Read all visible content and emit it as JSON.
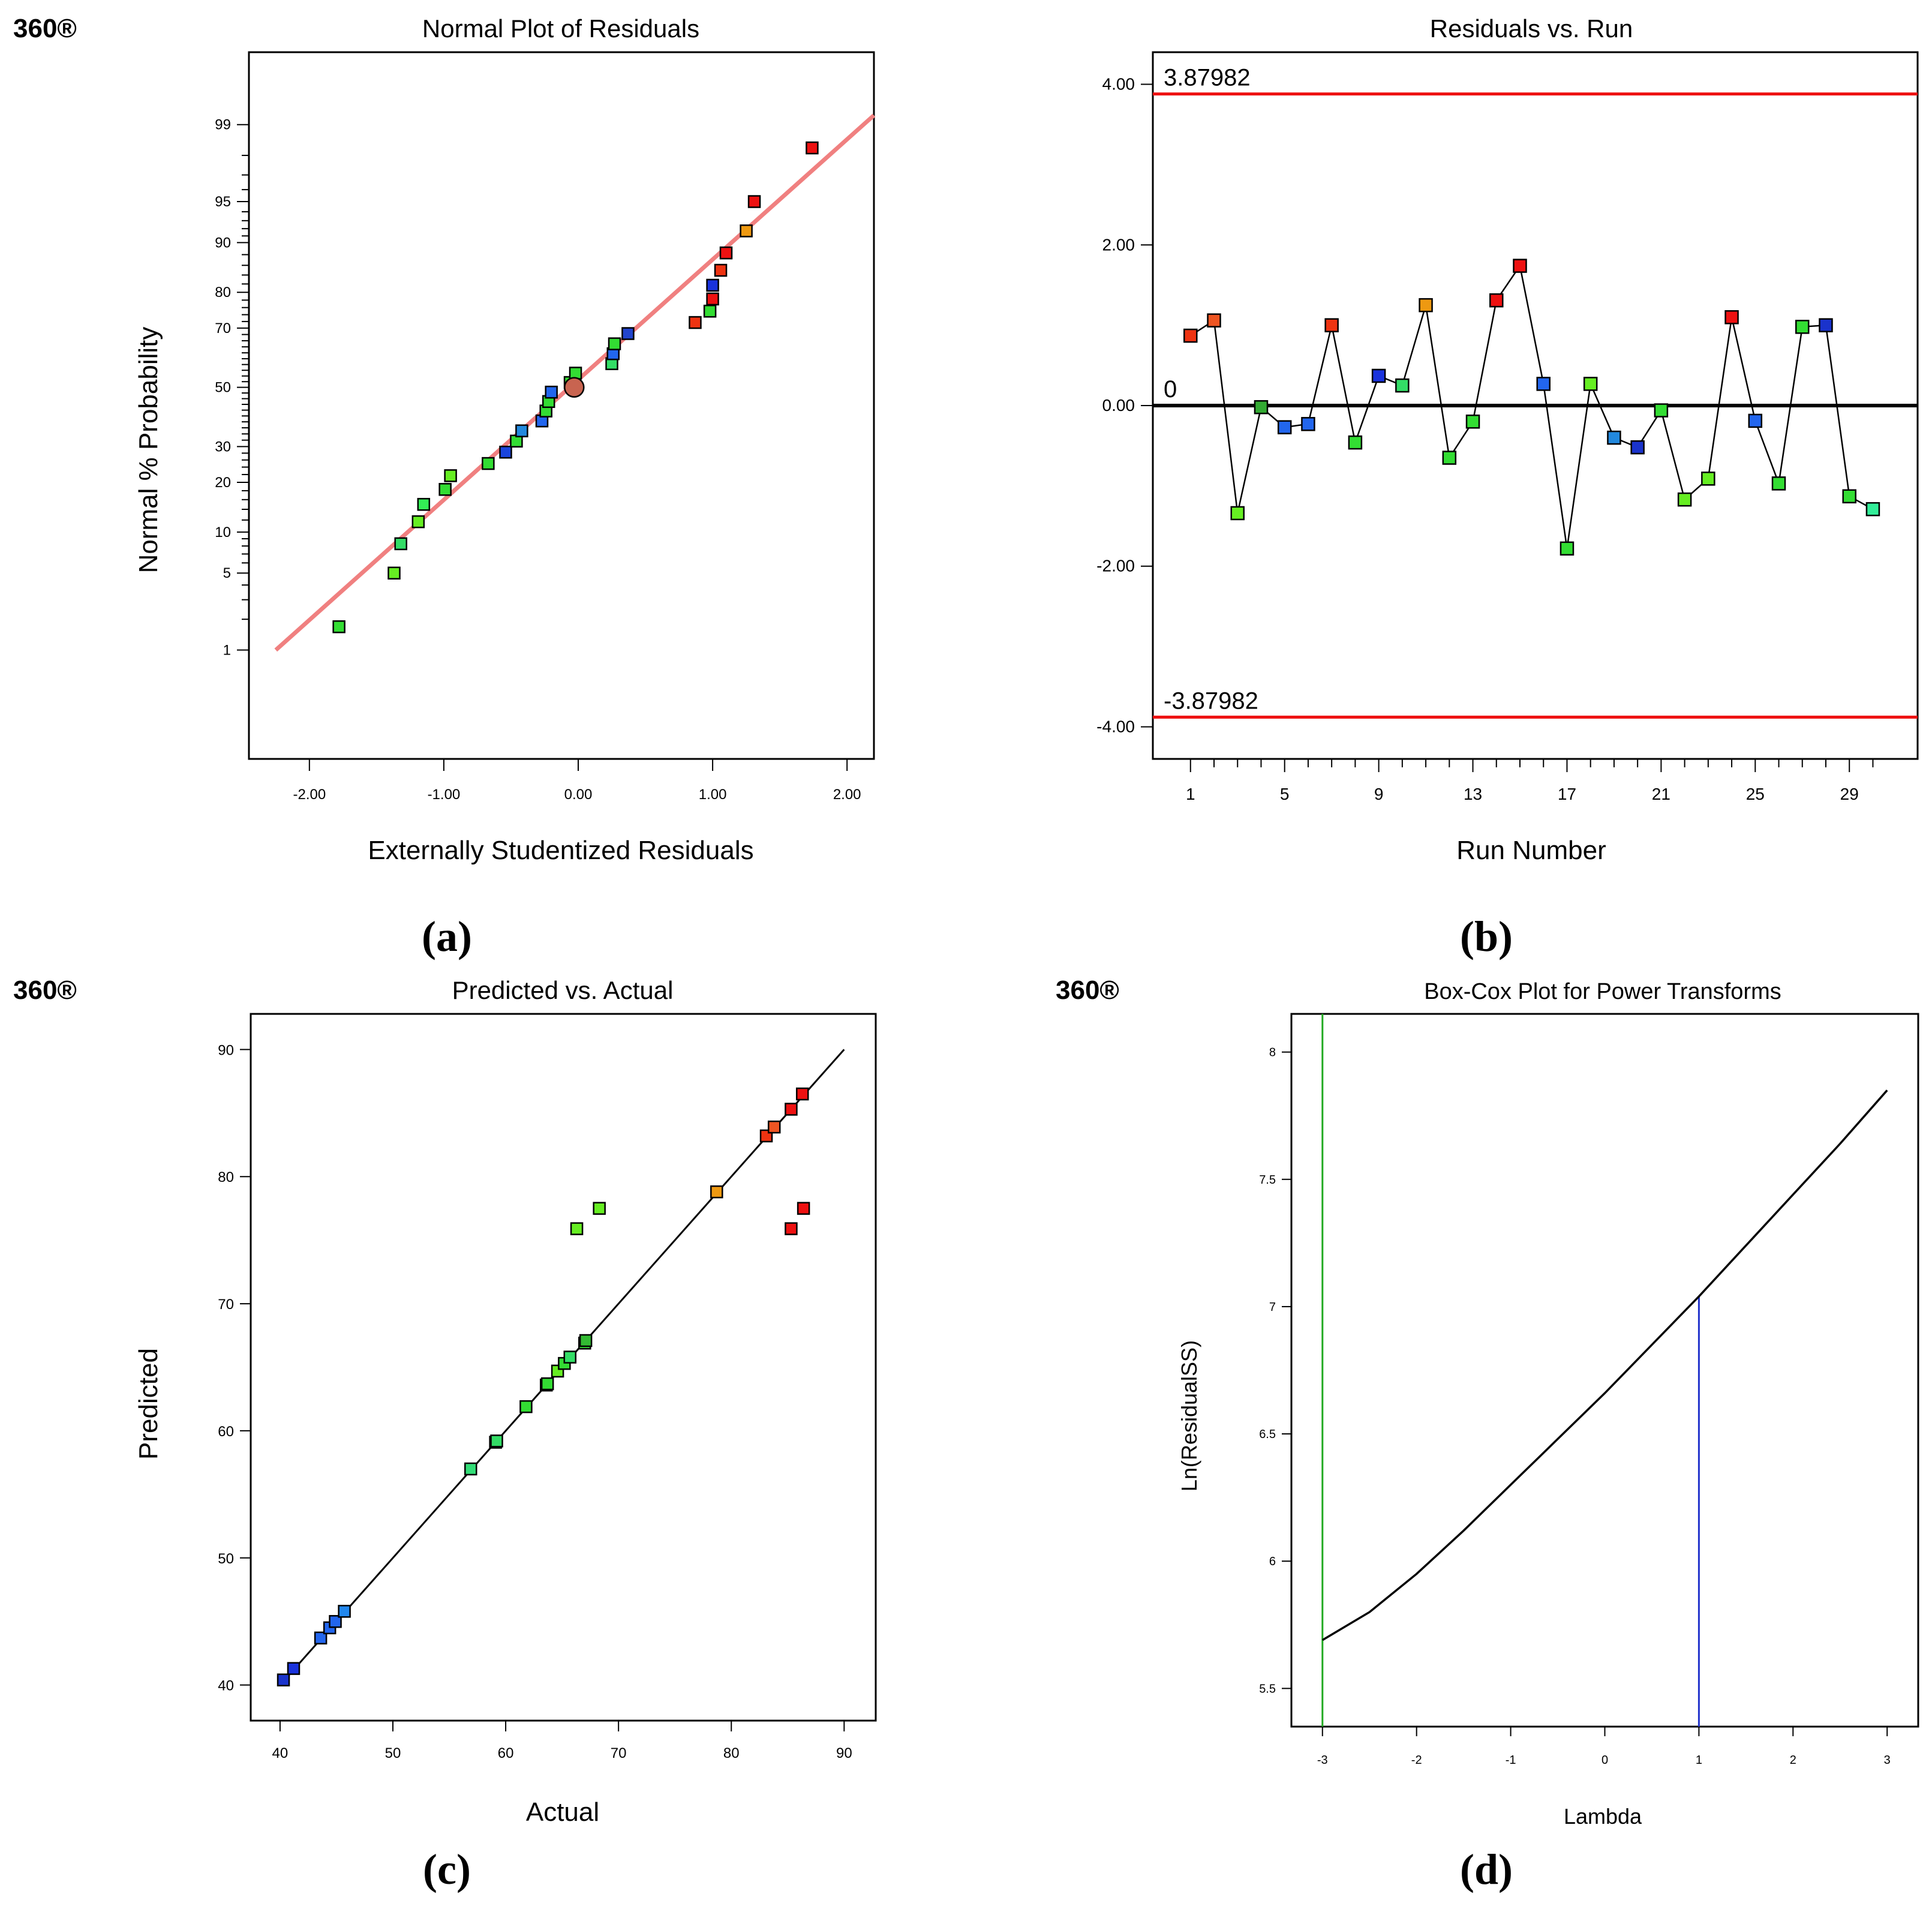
{
  "brand": "360®",
  "chart_data": [
    {
      "type": "scatter",
      "panel_label": "(a)",
      "title": "Normal Plot of Residuals",
      "xlabel": "Externally Studentized Residuals",
      "ylabel": "Normal % Probability",
      "xlim": [
        -2.45,
        2.2
      ],
      "x_ticks": [
        "-2.00",
        "-1.00",
        "0.00",
        "1.00",
        "2.00"
      ],
      "x_tick_values": [
        -2,
        -1,
        0,
        1,
        2
      ],
      "y_scale": "normal-probability",
      "y_ticks": [
        "1",
        "5",
        "10",
        "20",
        "30",
        "50",
        "70",
        "80",
        "90",
        "95",
        "99"
      ],
      "y_tick_values": [
        1,
        5,
        10,
        20,
        30,
        50,
        70,
        80,
        90,
        95,
        99
      ],
      "reference_line": {
        "x": [
          -2.25,
          2.2
        ],
        "y": [
          1,
          99.2
        ],
        "color": "#f08080"
      },
      "points": [
        {
          "x": -1.78,
          "y": 1.7,
          "color": "#33dd33"
        },
        {
          "x": -1.37,
          "y": 5.0,
          "color": "#66ee22"
        },
        {
          "x": -1.32,
          "y": 8.3,
          "color": "#33dd66"
        },
        {
          "x": -1.19,
          "y": 11.7,
          "color": "#66ee22"
        },
        {
          "x": -1.15,
          "y": 15.0,
          "color": "#33ee55"
        },
        {
          "x": -0.99,
          "y": 18.3,
          "color": "#33dd33"
        },
        {
          "x": -0.95,
          "y": 21.7,
          "color": "#66ee22"
        },
        {
          "x": -0.67,
          "y": 25.0,
          "color": "#33dd33"
        },
        {
          "x": -0.54,
          "y": 28.3,
          "color": "#1a44dd"
        },
        {
          "x": -0.46,
          "y": 31.7,
          "color": "#33dd33"
        },
        {
          "x": -0.42,
          "y": 35.0,
          "color": "#2288dd"
        },
        {
          "x": -0.27,
          "y": 38.3,
          "color": "#2266ee"
        },
        {
          "x": -0.24,
          "y": 41.7,
          "color": "#33dd33"
        },
        {
          "x": -0.22,
          "y": 45.0,
          "color": "#33dd33"
        },
        {
          "x": -0.2,
          "y": 48.3,
          "color": "#2266ee"
        },
        {
          "x": -0.06,
          "y": 51.7,
          "color": "#33dd33"
        },
        {
          "x": -0.02,
          "y": 55.0,
          "color": "#33dd33"
        },
        {
          "x": 0.25,
          "y": 58.3,
          "color": "#33dd66"
        },
        {
          "x": 0.26,
          "y": 61.7,
          "color": "#2266ee"
        },
        {
          "x": 0.27,
          "y": 65.0,
          "color": "#33dd33"
        },
        {
          "x": 0.37,
          "y": 68.3,
          "color": "#2244cc"
        },
        {
          "x": 0.87,
          "y": 71.7,
          "color": "#ee3311"
        },
        {
          "x": 0.98,
          "y": 75.0,
          "color": "#33dd33"
        },
        {
          "x": 1.0,
          "y": 78.3,
          "color": "#ee1111"
        },
        {
          "x": 1.0,
          "y": 81.7,
          "color": "#1a33dd"
        },
        {
          "x": 1.06,
          "y": 85.0,
          "color": "#ee3311"
        },
        {
          "x": 1.1,
          "y": 88.3,
          "color": "#ee1111"
        },
        {
          "x": 1.25,
          "y": 91.7,
          "color": "#ee9911"
        },
        {
          "x": 1.31,
          "y": 95.0,
          "color": "#ee1111"
        },
        {
          "x": 1.74,
          "y": 98.3,
          "color": "#ee1111"
        }
      ],
      "marker_circle": {
        "x": -0.03,
        "y": 50,
        "color": "#c86450"
      }
    },
    {
      "type": "line",
      "panel_label": "(b)",
      "title": "Residuals vs. Run",
      "xlabel": "Run Number",
      "ylabel": "",
      "xlim": [
        -0.6,
        31.9
      ],
      "ylim": [
        -4.4,
        4.4
      ],
      "x_ticks": [
        "1",
        "5",
        "9",
        "13",
        "17",
        "21",
        "25",
        "29"
      ],
      "x_tick_values": [
        1,
        5,
        9,
        13,
        17,
        21,
        25,
        29
      ],
      "y_ticks": [
        "-4.00",
        "-2.00",
        "0.00",
        "2.00",
        "4.00"
      ],
      "y_tick_values": [
        -4,
        -2,
        0,
        2,
        4
      ],
      "limit_lines": [
        {
          "value": 3.87982,
          "label": "3.87982",
          "color": "#ee1111"
        },
        {
          "value": 0,
          "label": "0",
          "color": "#000000"
        },
        {
          "value": -3.87982,
          "label": "-3.87982",
          "color": "#ee1111"
        }
      ],
      "x": [
        1,
        2,
        3,
        4,
        5,
        6,
        7,
        8,
        9,
        10,
        11,
        12,
        13,
        14,
        15,
        16,
        17,
        18,
        19,
        20,
        21,
        22,
        23,
        24,
        25,
        26,
        27,
        28,
        29,
        30
      ],
      "values": [
        0.87,
        1.06,
        -1.34,
        -0.02,
        -0.27,
        -0.23,
        1.0,
        -0.46,
        0.37,
        0.25,
        1.25,
        -0.65,
        -0.2,
        1.31,
        1.74,
        0.27,
        -1.78,
        0.27,
        -0.4,
        -0.52,
        -0.06,
        -1.17,
        -0.91,
        1.1,
        -0.19,
        -0.97,
        0.98,
        1.0,
        -1.13,
        -1.29
      ],
      "colors": [
        "#ee3311",
        "#ee5522",
        "#66ee22",
        "#33aa33",
        "#2266ee",
        "#2266ee",
        "#ee3311",
        "#33dd33",
        "#1a33dd",
        "#33dd66",
        "#ee9911",
        "#33dd33",
        "#33dd33",
        "#ee1111",
        "#ee1111",
        "#2266ee",
        "#33dd33",
        "#66ee22",
        "#2288dd",
        "#1a33cc",
        "#33dd33",
        "#66ee22",
        "#66ee22",
        "#ee1111",
        "#2266ee",
        "#33dd33",
        "#33dd33",
        "#1a33cc",
        "#33dd33",
        "#33ee99"
      ]
    },
    {
      "type": "scatter",
      "panel_label": "(c)",
      "title": "Predicted vs. Actual",
      "xlabel": "Actual",
      "ylabel": "Predicted",
      "xlim": [
        37.4,
        92.8
      ],
      "ylim": [
        37.2,
        92.8
      ],
      "x_ticks": [
        "40",
        "50",
        "60",
        "70",
        "80",
        "90"
      ],
      "x_tick_values": [
        40,
        50,
        60,
        70,
        80,
        90
      ],
      "y_ticks": [
        "40",
        "50",
        "60",
        "70",
        "80",
        "90"
      ],
      "y_tick_values": [
        40,
        50,
        60,
        70,
        80,
        90
      ],
      "reference_line": {
        "x": [
          40,
          90
        ],
        "y": [
          40,
          90
        ],
        "color": "#000000"
      },
      "x": [
        40.3,
        41.2,
        43.6,
        44.4,
        44.9,
        45.7,
        56.9,
        59.1,
        59.2,
        61.8,
        63.6,
        63.7,
        64.6,
        65.2,
        65.7,
        67.0,
        67.1,
        78.7,
        83.1,
        83.8,
        85.3,
        86.3,
        66.3,
        68.3,
        85.3,
        86.4
      ],
      "values": [
        40.4,
        41.3,
        43.7,
        44.5,
        45.0,
        45.8,
        57.0,
        59.1,
        59.2,
        61.9,
        63.6,
        63.7,
        64.7,
        65.3,
        65.8,
        66.9,
        67.1,
        78.8,
        83.2,
        83.9,
        85.3,
        86.5,
        75.9,
        77.5,
        75.9,
        77.5
      ],
      "colors": [
        "#1a33cc",
        "#1a33dd",
        "#2266ee",
        "#2266ee",
        "#2266ee",
        "#2288ee",
        "#33dd77",
        "#33dd33",
        "#33dd66",
        "#33dd33",
        "#33dd33",
        "#33dd33",
        "#66ee22",
        "#33dd33",
        "#33dd66",
        "#33dd33",
        "#33bb33",
        "#ee9911",
        "#ee3311",
        "#ee5522",
        "#ee1111",
        "#ee1111",
        "#66ee22",
        "#66ee22",
        "#ee1111",
        "#ee1111"
      ]
    },
    {
      "type": "line",
      "panel_label": "(d)",
      "title": "Box-Cox Plot for Power Transforms",
      "xlabel": "Lambda",
      "ylabel": "Ln(ResidualSS)",
      "xlim": [
        -3.33,
        3.33
      ],
      "ylim": [
        5.35,
        8.15
      ],
      "x_ticks": [
        "-3",
        "-2",
        "-1",
        "0",
        "1",
        "2",
        "3"
      ],
      "x_tick_values": [
        -3,
        -2,
        -1,
        0,
        1,
        2,
        3
      ],
      "y_ticks": [
        "5.5",
        "6",
        "6.5",
        "7",
        "7.5",
        "8"
      ],
      "y_tick_values": [
        5.5,
        6,
        6.5,
        7,
        7.5,
        8
      ],
      "x": [
        -3,
        -2.5,
        -2,
        -1.5,
        -1,
        -0.5,
        0,
        0.5,
        1,
        1.5,
        2,
        2.5,
        3
      ],
      "values": [
        5.69,
        5.8,
        5.95,
        6.12,
        6.3,
        6.48,
        6.66,
        6.85,
        7.04,
        7.24,
        7.44,
        7.64,
        7.85
      ],
      "vertical_lines": [
        {
          "value": -3,
          "color": "#22aa22"
        },
        {
          "value": 1,
          "color": "#2233cc"
        }
      ]
    }
  ]
}
